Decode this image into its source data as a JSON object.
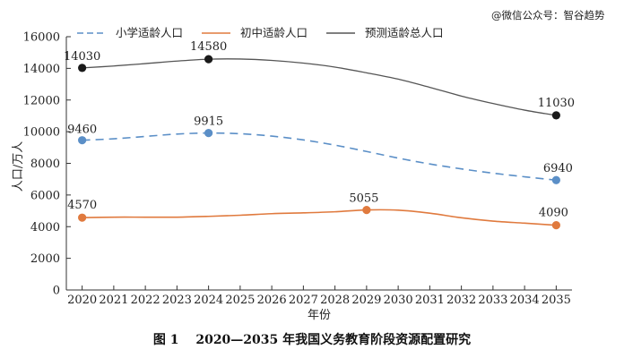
{
  "watermark": "@微信公众号：智谷趋势",
  "caption": "图 1　 2020—2035 年我国义务教育阶段资源配置研究",
  "chart_data": {
    "type": "line",
    "xlabel": "年份",
    "ylabel": "人口/万人",
    "ylim": [
      0,
      16000
    ],
    "yticks": [
      0,
      2000,
      4000,
      6000,
      8000,
      10000,
      12000,
      14000,
      16000
    ],
    "x": [
      2020,
      2021,
      2022,
      2023,
      2024,
      2025,
      2026,
      2027,
      2028,
      2029,
      2030,
      2031,
      2032,
      2033,
      2034,
      2035
    ],
    "x_tick_labels": [
      "2020",
      "2021",
      "2022",
      "2023",
      "2024",
      "2025",
      "2026",
      "2027",
      "2028",
      "2029",
      "2030",
      "2031",
      "2032",
      "2033",
      "2034",
      "2035"
    ],
    "legend_position": "top",
    "series": [
      {
        "name": "小学适龄人口",
        "color": "#5b8fc7",
        "dash": "dashed",
        "curve": [
          [
            2020,
            9460
          ],
          [
            2021,
            9550
          ],
          [
            2022,
            9700
          ],
          [
            2023,
            9850
          ],
          [
            2024,
            9915
          ],
          [
            2025,
            9870
          ],
          [
            2026,
            9720
          ],
          [
            2027,
            9480
          ],
          [
            2028,
            9150
          ],
          [
            2029,
            8750
          ],
          [
            2030,
            8330
          ],
          [
            2031,
            7960
          ],
          [
            2032,
            7650
          ],
          [
            2033,
            7380
          ],
          [
            2034,
            7150
          ],
          [
            2035,
            6940
          ]
        ],
        "points": [
          [
            2020,
            9460
          ],
          [
            2024,
            9915
          ],
          [
            2035,
            6940
          ]
        ],
        "point_labels": [
          "9460",
          "9915",
          "6940"
        ]
      },
      {
        "name": "初中适龄人口",
        "color": "#e07a3e",
        "dash": "solid",
        "curve": [
          [
            2020,
            4570
          ],
          [
            2021,
            4600
          ],
          [
            2022,
            4600
          ],
          [
            2023,
            4600
          ],
          [
            2024,
            4650
          ],
          [
            2025,
            4720
          ],
          [
            2026,
            4820
          ],
          [
            2027,
            4870
          ],
          [
            2028,
            4940
          ],
          [
            2029,
            5055
          ],
          [
            2030,
            5040
          ],
          [
            2031,
            4850
          ],
          [
            2032,
            4560
          ],
          [
            2033,
            4350
          ],
          [
            2034,
            4220
          ],
          [
            2035,
            4090
          ]
        ],
        "points": [
          [
            2020,
            4570
          ],
          [
            2029,
            5055
          ],
          [
            2035,
            4090
          ]
        ],
        "point_labels": [
          "4570",
          "5055",
          "4090"
        ]
      },
      {
        "name": "预测适龄总人口",
        "color": "#555555",
        "dash": "solid",
        "curve": [
          [
            2020,
            14030
          ],
          [
            2021,
            14150
          ],
          [
            2022,
            14300
          ],
          [
            2023,
            14460
          ],
          [
            2024,
            14580
          ],
          [
            2025,
            14590
          ],
          [
            2026,
            14500
          ],
          [
            2027,
            14330
          ],
          [
            2028,
            14080
          ],
          [
            2029,
            13720
          ],
          [
            2030,
            13320
          ],
          [
            2031,
            12800
          ],
          [
            2032,
            12250
          ],
          [
            2033,
            11780
          ],
          [
            2034,
            11360
          ],
          [
            2035,
            11030
          ]
        ],
        "points": [
          [
            2020,
            14030
          ],
          [
            2024,
            14580
          ],
          [
            2035,
            11030
          ]
        ],
        "point_labels": [
          "14030",
          "14580",
          "11030"
        ]
      }
    ]
  },
  "point_colors": [
    "#5b8fc7",
    "#e07a3e",
    "#1a1a1a"
  ]
}
